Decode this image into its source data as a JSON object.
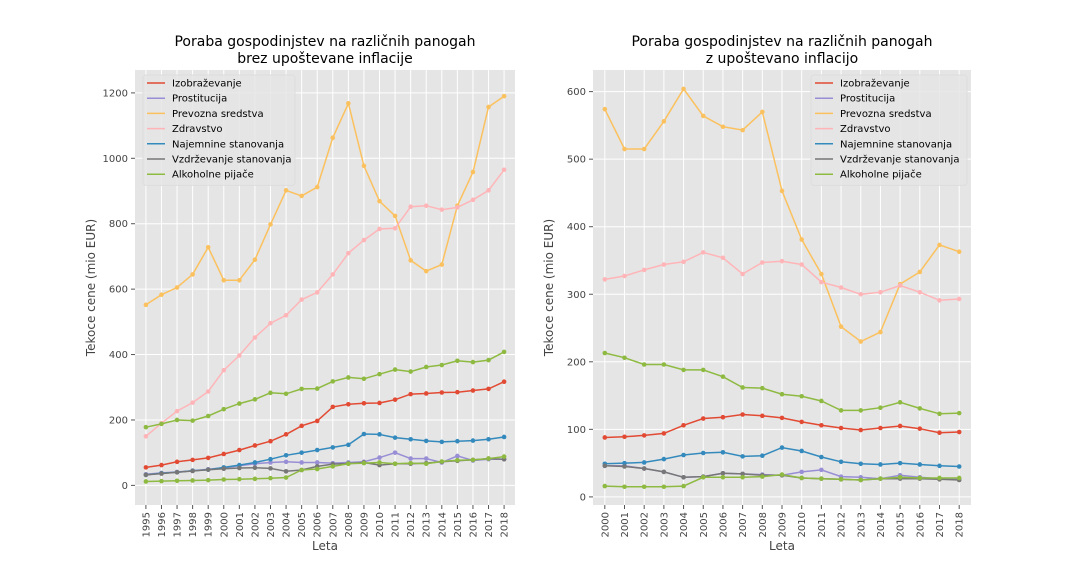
{
  "chart_data": [
    {
      "type": "line",
      "title": "Poraba gospodinjstev na različnih panogah\nbrez upoštevane inflacije",
      "xlabel": "Leta",
      "ylabel": "Tekoce cene (mio EUR)",
      "x": [
        1995,
        1996,
        1997,
        1998,
        1999,
        2000,
        2001,
        2002,
        2003,
        2004,
        2005,
        2006,
        2007,
        2008,
        2009,
        2010,
        2011,
        2012,
        2013,
        2014,
        2015,
        2016,
        2017,
        2018
      ],
      "xlim": [
        1994.3,
        2018.7
      ],
      "ylim": [
        -60,
        1270
      ],
      "yticks": [
        0,
        200,
        400,
        600,
        800,
        1000,
        1200
      ],
      "grid": true,
      "legend": "top-left",
      "series": [
        {
          "name": "Izobraževanje",
          "color": "#E24A33",
          "values": [
            55,
            62,
            72,
            78,
            84,
            96,
            108,
            122,
            135,
            156,
            182,
            197,
            240,
            248,
            251,
            252,
            262,
            279,
            281,
            284,
            285,
            290,
            295,
            317
          ]
        },
        {
          "name": "Prostitucija",
          "color": "#988ED5",
          "values": [
            34,
            38,
            41,
            45,
            49,
            54,
            60,
            66,
            70,
            72,
            70,
            70,
            68,
            70,
            72,
            85,
            100,
            82,
            82,
            70,
            90,
            76,
            80,
            80
          ]
        },
        {
          "name": "Prevozna sredstva",
          "color": "#FBC15E",
          "values": [
            552,
            583,
            605,
            645,
            728,
            627,
            627,
            690,
            798,
            902,
            885,
            912,
            1063,
            1168,
            977,
            869,
            824,
            688,
            655,
            675,
            855,
            958,
            1157,
            1190
          ]
        },
        {
          "name": "Zdravstvo",
          "color": "#FFB5B8",
          "values": [
            150,
            190,
            227,
            253,
            287,
            352,
            397,
            452,
            496,
            520,
            568,
            590,
            645,
            710,
            750,
            784,
            786,
            852,
            855,
            843,
            850,
            873,
            902,
            965
          ]
        },
        {
          "name": "Najemnine stanovanja",
          "color": "#348ABD",
          "values": [
            32,
            37,
            40,
            45,
            48,
            55,
            62,
            70,
            80,
            92,
            100,
            108,
            116,
            124,
            157,
            156,
            146,
            141,
            136,
            133,
            135,
            137,
            141,
            148
          ]
        },
        {
          "name": "Vzdrževanje stanovanja",
          "color": "#777777",
          "values": [
            32,
            36,
            40,
            44,
            48,
            51,
            53,
            54,
            52,
            43,
            47,
            58,
            65,
            67,
            70,
            62,
            66,
            66,
            68,
            72,
            75,
            78,
            82,
            80
          ]
        },
        {
          "name": "Alkoholne pijače",
          "color": "#8EBA42",
          "values": [
            12,
            13,
            14,
            15,
            16,
            18,
            19,
            20,
            22,
            24,
            47,
            50,
            58,
            66,
            68,
            70,
            66,
            68,
            66,
            73,
            77,
            78,
            82,
            88
          ]
        },
        {
          "name": "_extra_green",
          "label_visible": false,
          "color": "#8EBA42",
          "values": [
            178,
            188,
            200,
            198,
            212,
            233,
            250,
            263,
            283,
            280,
            295,
            296,
            318,
            330,
            326,
            340,
            354,
            348,
            362,
            368,
            381,
            377,
            383,
            408
          ]
        }
      ]
    },
    {
      "type": "line",
      "title": "Poraba gospodinjstev na različnih panogah\nz upoštevano inflacijo",
      "xlabel": "Leta",
      "ylabel": "Tekoce cene (mio EUR)",
      "x": [
        2000,
        2001,
        2002,
        2003,
        2004,
        2005,
        2006,
        2007,
        2008,
        2009,
        2010,
        2011,
        2012,
        2013,
        2014,
        2015,
        2016,
        2017,
        2018
      ],
      "xlim": [
        1999.4,
        2018.6
      ],
      "ylim": [
        -12,
        632
      ],
      "yticks": [
        0,
        100,
        200,
        300,
        400,
        500,
        600
      ],
      "grid": true,
      "legend": "top-right",
      "series": [
        {
          "name": "Izobraževanje",
          "color": "#E24A33",
          "values": [
            88,
            89,
            91,
            94,
            106,
            116,
            118,
            122,
            120,
            117,
            111,
            106,
            102,
            99,
            102,
            105,
            101,
            95,
            96
          ]
        },
        {
          "name": "Prostitucija",
          "color": "#988ED5",
          "values": [
            46,
            46,
            42,
            37,
            29,
            30,
            35,
            34,
            33,
            32,
            37,
            40,
            30,
            29,
            27,
            32,
            29,
            27,
            27
          ]
        },
        {
          "name": "Prevozna sredstva",
          "color": "#FBC15E",
          "values": [
            574,
            515,
            515,
            556,
            604,
            564,
            548,
            543,
            570,
            453,
            381,
            330,
            252,
            230,
            244,
            315,
            333,
            373,
            363
          ]
        },
        {
          "name": "Zdravstvo",
          "color": "#FFB5B8",
          "values": [
            322,
            327,
            336,
            344,
            348,
            362,
            354,
            330,
            347,
            349,
            344,
            318,
            310,
            300,
            303,
            313,
            303,
            291,
            293
          ]
        },
        {
          "name": "Najemnine stanovanja",
          "color": "#348ABD",
          "values": [
            49,
            50,
            51,
            56,
            62,
            65,
            66,
            60,
            61,
            73,
            68,
            59,
            52,
            49,
            48,
            50,
            48,
            46,
            45
          ]
        },
        {
          "name": "Vzdrževanje stanovanja",
          "color": "#777777",
          "values": [
            46,
            45,
            42,
            37,
            29,
            30,
            35,
            34,
            32,
            32,
            28,
            27,
            26,
            25,
            27,
            27,
            27,
            26,
            25
          ]
        },
        {
          "name": "Alkoholne pijače",
          "color": "#8EBA42",
          "values": [
            16,
            15,
            15,
            15,
            16,
            29,
            29,
            29,
            30,
            33,
            28,
            27,
            26,
            25,
            27,
            29,
            28,
            28,
            28
          ]
        },
        {
          "name": "_extra_green",
          "label_visible": false,
          "color": "#8EBA42",
          "values": [
            213,
            206,
            196,
            196,
            188,
            188,
            178,
            162,
            161,
            152,
            149,
            142,
            128,
            128,
            132,
            140,
            131,
            123,
            124
          ]
        }
      ]
    }
  ]
}
